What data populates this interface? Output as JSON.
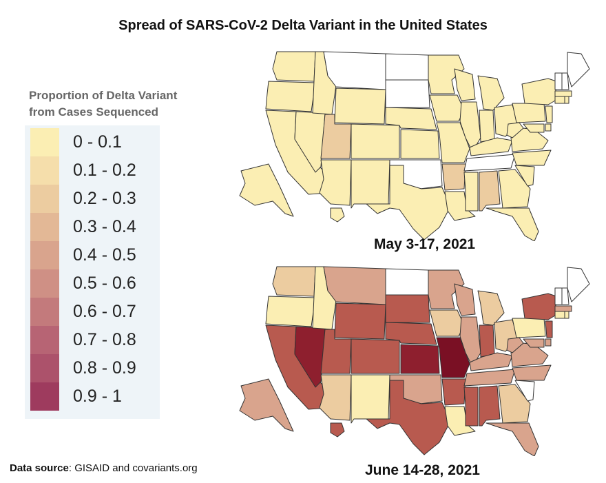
{
  "title": "Spread of SARS-CoV-2 Delta Variant in the United States",
  "legend": {
    "title_line1": "Proportion of Delta Variant",
    "title_line2": "from Cases Sequenced",
    "bins": [
      {
        "label": "0 - 0.1",
        "color": "#fbeeb3"
      },
      {
        "label": "0.1 - 0.2",
        "color": "#f5deab"
      },
      {
        "label": "0.2 - 0.3",
        "color": "#ecccA0"
      },
      {
        "label": "0.3 - 0.4",
        "color": "#e3b896"
      },
      {
        "label": "0.4 - 0.5",
        "color": "#d9a48d"
      },
      {
        "label": "0.5 - 0.6",
        "color": "#cf9085"
      },
      {
        "label": "0.6 - 0.7",
        "color": "#c37a7c"
      },
      {
        "label": "0.7 - 0.8",
        "color": "#b76474"
      },
      {
        "label": "0.8 - 0.9",
        "color": "#ac526b"
      },
      {
        "label": "0.9 - 1",
        "color": "#9e3b5e"
      }
    ]
  },
  "maps": [
    {
      "caption": "May 3-17, 2021"
    },
    {
      "caption": "June 14-28, 2021"
    }
  ],
  "source": {
    "label": "Data source",
    "text": ": GISAID and covariants.org"
  },
  "colors": {
    "nodata": "#ffffff",
    "low": "#fbeeb3",
    "tan": "#ecccA0",
    "mid": "#d9a48d",
    "high": "#b85a4f",
    "vhigh": "#8e1f2e",
    "darkest": "#7a1024"
  }
}
